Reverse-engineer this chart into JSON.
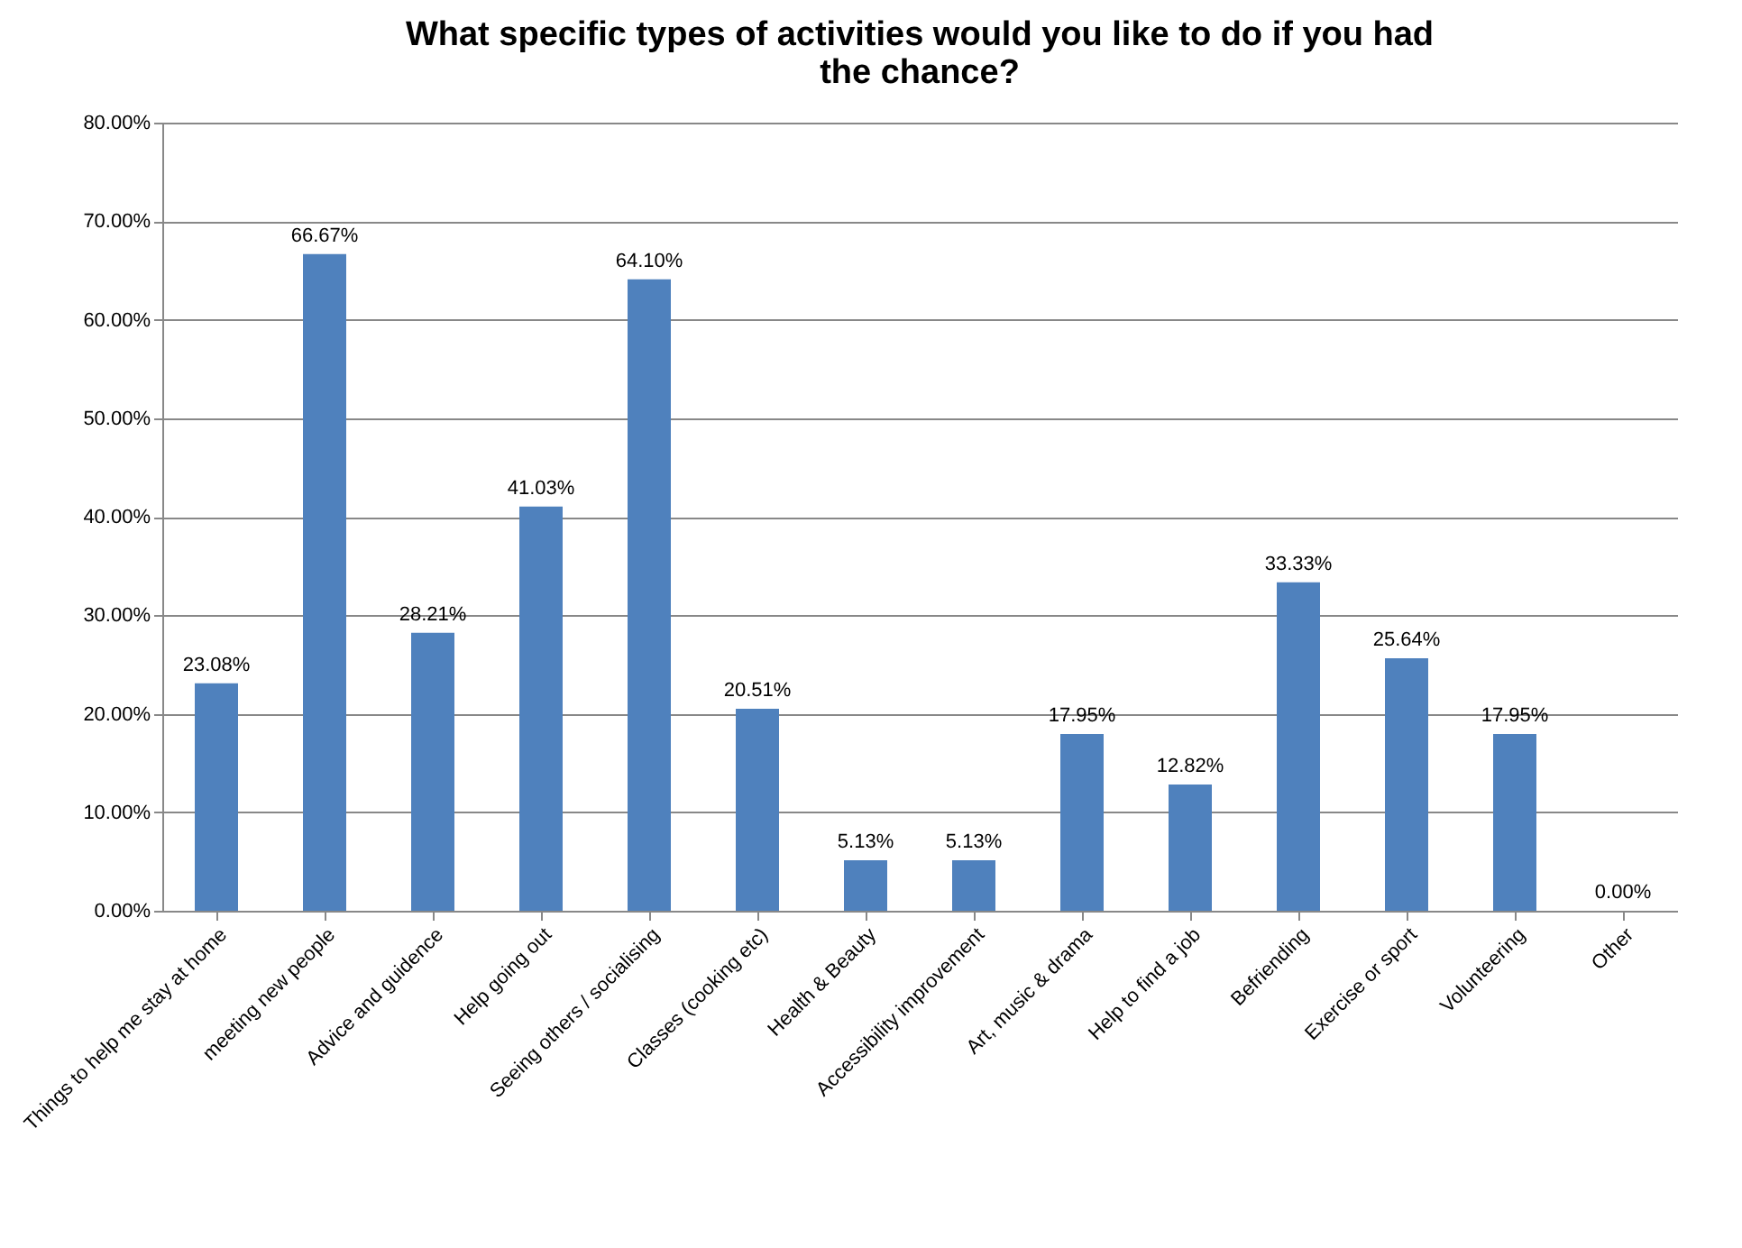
{
  "chart_data": {
    "type": "bar",
    "title": "What specific types of activities would you like to do if you had the chance?",
    "categories": [
      "Things to help me stay at home",
      "meeting new people",
      "Advice and guidence",
      "Help going out",
      "Seeing others / socialising",
      "Classes (cooking etc)",
      "Health & Beauty",
      "Accessibility improvement",
      "Art, music & drama",
      "Help to find a job",
      "Befriending",
      "Exercise or sport",
      "Volunteering",
      "Other"
    ],
    "values": [
      23.08,
      66.67,
      28.21,
      41.03,
      64.1,
      20.51,
      5.13,
      5.13,
      17.95,
      12.82,
      33.33,
      25.64,
      17.95,
      0.0
    ],
    "value_labels": [
      "23.08%",
      "66.67%",
      "28.21%",
      "41.03%",
      "64.10%",
      "20.51%",
      "5.13%",
      "5.13%",
      "17.95%",
      "12.82%",
      "33.33%",
      "25.64%",
      "17.95%",
      "0.00%"
    ],
    "color": "#4f81bd",
    "ylim": [
      0,
      80
    ],
    "yticks": [
      {
        "value": 0,
        "label": "0.00%"
      },
      {
        "value": 10,
        "label": "10.00%"
      },
      {
        "value": 20,
        "label": "20.00%"
      },
      {
        "value": 30,
        "label": "30.00%"
      },
      {
        "value": 40,
        "label": "40.00%"
      },
      {
        "value": 50,
        "label": "50.00%"
      },
      {
        "value": 60,
        "label": "60.00%"
      },
      {
        "value": 70,
        "label": "70.00%"
      },
      {
        "value": 80,
        "label": "80.00%"
      }
    ],
    "grid": "y"
  }
}
